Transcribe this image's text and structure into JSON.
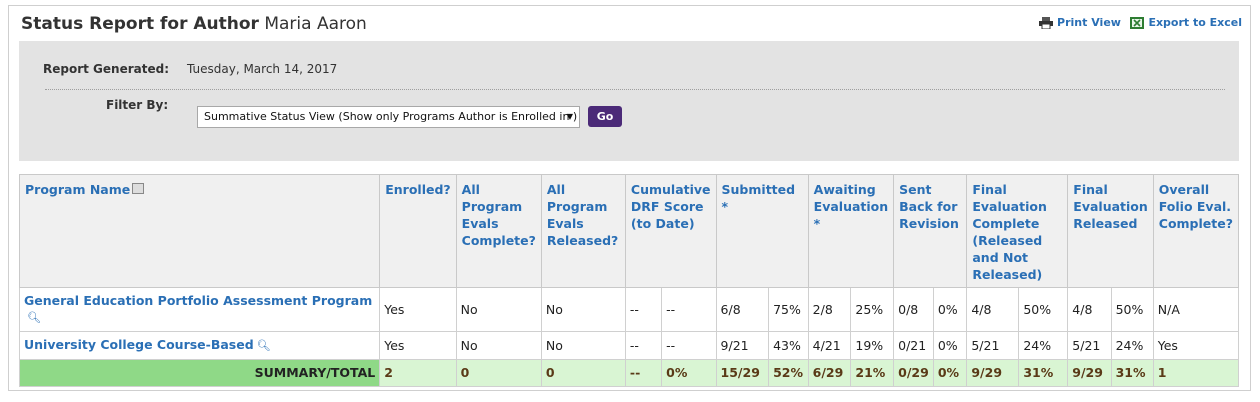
{
  "header": {
    "title_prefix": "Status Report for Author",
    "author_name": "Maria Aaron",
    "print_view": "Print View",
    "export_excel": "Export to Excel"
  },
  "filters": {
    "report_generated_label": "Report Generated:",
    "report_generated_value": "Tuesday, March 14, 2017",
    "filter_by_label": "Filter By:",
    "filter_selected": "Summative Status View (Show only Programs Author is Enrolled in )",
    "go_label": "Go"
  },
  "table": {
    "headers": {
      "program_name": "Program Name",
      "enrolled": "Enrolled?",
      "all_program_evals_complete": "All Program Evals Complete?",
      "all_program_evals_released": "All Program Evals Released?",
      "cumulative_drf": "Cumulative DRF Score (to Date)",
      "submitted": "Submitted *",
      "awaiting": "Awaiting Evaluation *",
      "sent_back": "Sent Back for Revision",
      "final_complete": "Final Evaluation Complete (Released and Not Released)",
      "final_released": "Final Evaluation Released",
      "overall_folio": "Overall Folio Eval. Complete?"
    },
    "rows": [
      {
        "program": "General Education Portfolio Assessment Program",
        "enrolled": "Yes",
        "evals_complete": "No",
        "evals_released": "No",
        "drf_a": "--",
        "drf_b": "--",
        "submitted_n": "6/8",
        "submitted_p": "75%",
        "awaiting_n": "2/8",
        "awaiting_p": "25%",
        "sent_n": "0/8",
        "sent_p": "0%",
        "final_c_n": "4/8",
        "final_c_p": "50%",
        "final_r_n": "4/8",
        "final_r_p": "50%",
        "overall": "N/A"
      },
      {
        "program": "University College Course-Based",
        "enrolled": "Yes",
        "evals_complete": "No",
        "evals_released": "No",
        "drf_a": "--",
        "drf_b": "--",
        "submitted_n": "9/21",
        "submitted_p": "43%",
        "awaiting_n": "4/21",
        "awaiting_p": "19%",
        "sent_n": "0/21",
        "sent_p": "0%",
        "final_c_n": "5/21",
        "final_c_p": "24%",
        "final_r_n": "5/21",
        "final_r_p": "24%",
        "overall": "Yes"
      }
    ],
    "summary": {
      "label": "SUMMARY/TOTAL",
      "enrolled": "2",
      "evals_complete": "0",
      "evals_released": "0",
      "drf_a": "--",
      "drf_b": "0%",
      "submitted_n": "15/29",
      "submitted_p": "52%",
      "awaiting_n": "6/29",
      "awaiting_p": "21%",
      "sent_n": "0/29",
      "sent_p": "0%",
      "final_c_n": "9/29",
      "final_c_p": "31%",
      "final_r_n": "9/29",
      "final_r_p": "31%",
      "overall": "1"
    }
  },
  "icons": {
    "print": "printer-icon",
    "excel": "excel-icon",
    "sort": "sort-icon",
    "search": "magnifier-icon",
    "dropdown": "dropdown-arrow-icon"
  },
  "colors": {
    "link_blue": "#2a6fb5",
    "go_button": "#4b2a78",
    "summary_row": "#d9f5d3",
    "summary_label": "#8fd987",
    "filter_panel": "#e3e3e3"
  }
}
